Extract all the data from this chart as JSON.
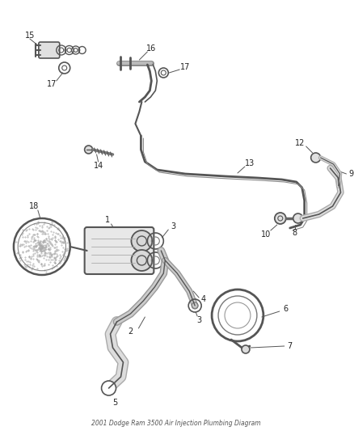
{
  "title": "2001 Dodge Ram 3500 Air Injection Plumbing Diagram",
  "bg_color": "#ffffff",
  "lc": "#666666",
  "figsize": [
    4.38,
    5.33
  ],
  "dpi": 100
}
